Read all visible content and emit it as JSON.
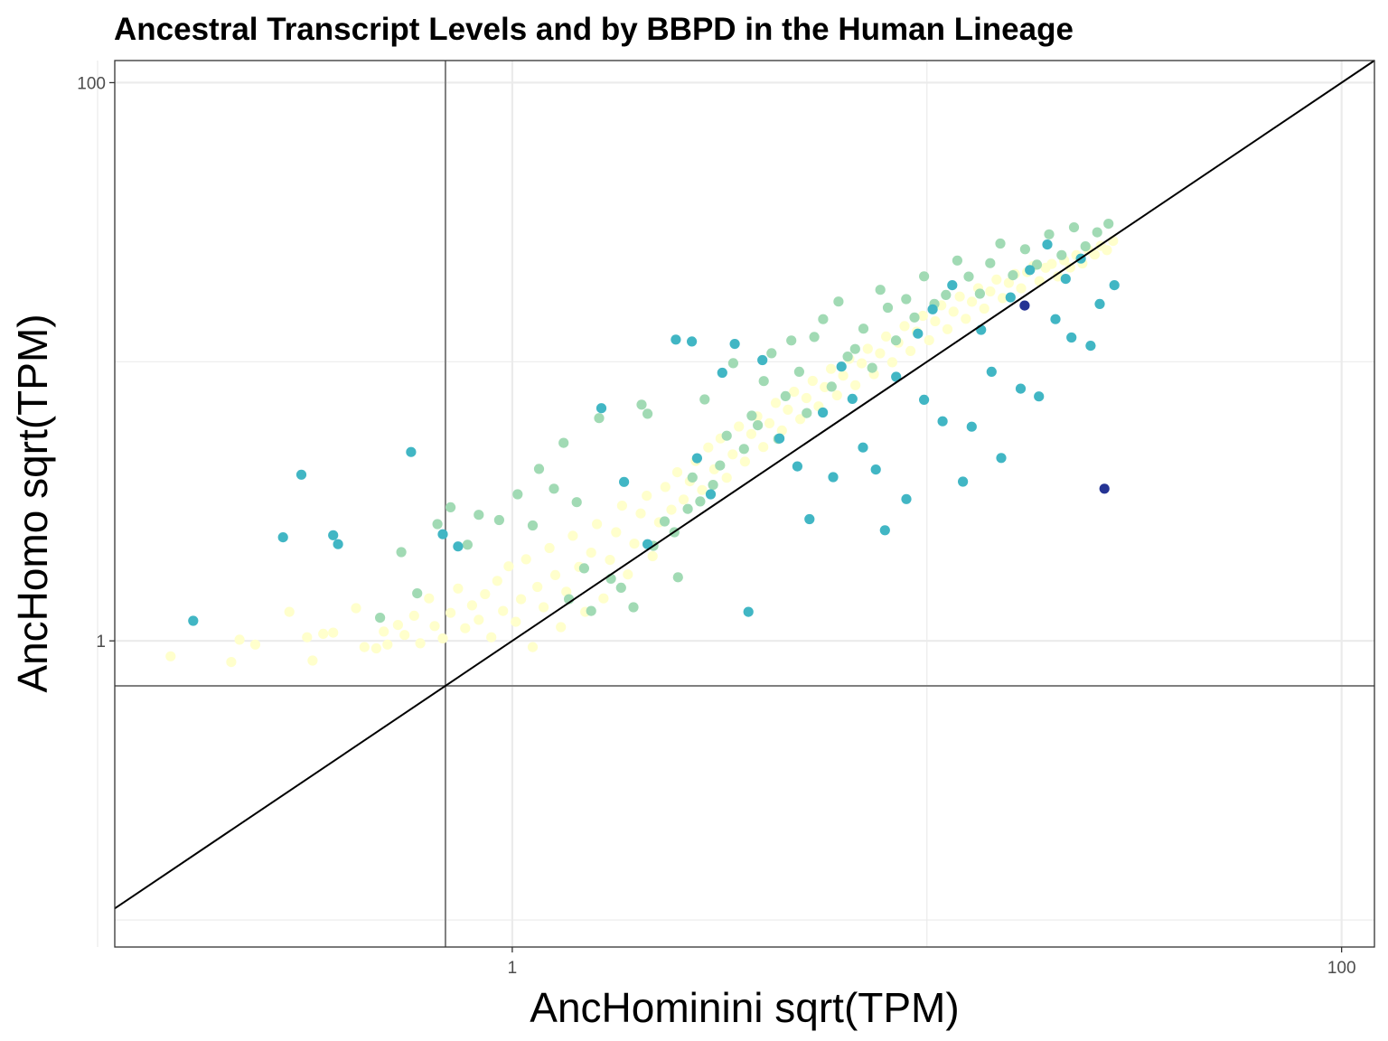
{
  "chart_data": {
    "type": "scatter",
    "title": "Ancestral Transcript Levels and by BBPD in the Human Lineage",
    "xlabel": "AncHominini sqrt(TPM)",
    "ylabel": "AncHomo sqrt(TPM)",
    "x_scale": "log10",
    "y_scale": "log10",
    "xlim": [
      0.11,
      120
    ],
    "ylim": [
      0.08,
      120
    ],
    "x_ticks": [
      {
        "value": 1,
        "label": "1"
      },
      {
        "value": 100,
        "label": "100"
      }
    ],
    "y_ticks": [
      {
        "value": 1,
        "label": "1"
      },
      {
        "value": 100,
        "label": "100"
      }
    ],
    "x_minor_gridlines": [
      0.1,
      10
    ],
    "y_minor_gridlines": [
      0.1,
      10
    ],
    "grid": true,
    "reference_lines": {
      "vertical_x": 0.69,
      "horizontal_y": 0.69,
      "identity_line": true
    },
    "colors": {
      "panel_border": "#333333",
      "grid": "#ebebeb",
      "reference_line": "#7f7f7f",
      "identity_line": "#000000"
    },
    "series": [
      {
        "color": "#ffffcc",
        "points": [
          [
            0.15,
            0.88
          ],
          [
            0.21,
            0.84
          ],
          [
            0.22,
            1.01
          ],
          [
            0.24,
            0.97
          ],
          [
            0.29,
            1.27
          ],
          [
            0.32,
            1.03
          ],
          [
            0.33,
            0.85
          ],
          [
            0.35,
            1.06
          ],
          [
            0.37,
            1.07
          ],
          [
            0.42,
            1.31
          ],
          [
            0.44,
            0.95
          ],
          [
            0.47,
            0.94
          ],
          [
            0.49,
            1.08
          ],
          [
            0.5,
            0.97
          ],
          [
            0.53,
            1.14
          ],
          [
            0.55,
            1.05
          ],
          [
            0.58,
            1.23
          ],
          [
            0.6,
            0.98
          ],
          [
            0.63,
            1.42
          ],
          [
            0.65,
            1.13
          ],
          [
            0.68,
            1.02
          ],
          [
            0.71,
            1.26
          ],
          [
            0.74,
            1.54
          ],
          [
            0.77,
            1.11
          ],
          [
            0.8,
            1.34
          ],
          [
            0.83,
            1.19
          ],
          [
            0.86,
            1.47
          ],
          [
            0.89,
            1.03
          ],
          [
            0.92,
            1.64
          ],
          [
            0.95,
            1.28
          ],
          [
            0.98,
            1.85
          ],
          [
            1.02,
            1.17
          ],
          [
            1.05,
            1.41
          ],
          [
            1.08,
            1.96
          ],
          [
            1.12,
            0.95
          ],
          [
            1.15,
            1.56
          ],
          [
            1.19,
            1.32
          ],
          [
            1.23,
            2.15
          ],
          [
            1.27,
            1.72
          ],
          [
            1.31,
            1.12
          ],
          [
            1.35,
            1.5
          ],
          [
            1.4,
            2.38
          ],
          [
            1.45,
            1.84
          ],
          [
            1.5,
            1.27
          ],
          [
            1.55,
            2.07
          ],
          [
            1.6,
            2.62
          ],
          [
            1.66,
            1.42
          ],
          [
            1.72,
            1.95
          ],
          [
            1.78,
            2.45
          ],
          [
            1.84,
            3.05
          ],
          [
            1.9,
            1.73
          ],
          [
            1.97,
            2.23
          ],
          [
            2.04,
            2.86
          ],
          [
            2.11,
            3.31
          ],
          [
            2.18,
            2.01
          ],
          [
            2.26,
            2.66
          ],
          [
            2.34,
            3.56
          ],
          [
            2.42,
            2.95
          ],
          [
            2.5,
            4.02
          ],
          [
            2.59,
            3.21
          ],
          [
            2.68,
            3.73
          ],
          [
            2.77,
            4.41
          ],
          [
            2.87,
            3.47
          ],
          [
            2.97,
            4.93
          ],
          [
            3.07,
            4.12
          ],
          [
            3.18,
            5.31
          ],
          [
            3.29,
            3.84
          ],
          [
            3.4,
            4.66
          ],
          [
            3.52,
            5.86
          ],
          [
            3.64,
            4.39
          ],
          [
            3.77,
            5.51
          ],
          [
            3.9,
            6.37
          ],
          [
            4.03,
            4.95
          ],
          [
            4.17,
            6.02
          ],
          [
            4.32,
            7.12
          ],
          [
            4.47,
            5.67
          ],
          [
            4.62,
            6.73
          ],
          [
            4.78,
            7.81
          ],
          [
            4.95,
            6.23
          ],
          [
            5.12,
            7.41
          ],
          [
            5.3,
            8.54
          ],
          [
            5.48,
            6.92
          ],
          [
            5.67,
            8.11
          ],
          [
            5.87,
            9.43
          ],
          [
            6.07,
            7.58
          ],
          [
            6.28,
            8.92
          ],
          [
            6.5,
            10.25
          ],
          [
            6.72,
            8.24
          ],
          [
            6.96,
            9.87
          ],
          [
            7.2,
            11.13
          ],
          [
            7.45,
            9.03
          ],
          [
            7.71,
            10.72
          ],
          [
            7.97,
            12.31
          ],
          [
            8.25,
            9.96
          ],
          [
            8.53,
            11.71
          ],
          [
            8.83,
            13.42
          ],
          [
            9.13,
            10.93
          ],
          [
            9.45,
            12.82
          ],
          [
            9.78,
            14.61
          ],
          [
            10.12,
            11.94
          ],
          [
            10.47,
            13.97
          ],
          [
            10.83,
            15.93
          ],
          [
            11.21,
            13.08
          ],
          [
            11.59,
            15.12
          ],
          [
            12.0,
            17.12
          ],
          [
            12.41,
            14.25
          ],
          [
            12.84,
            16.41
          ],
          [
            13.29,
            18.33
          ],
          [
            13.75,
            15.51
          ],
          [
            14.22,
            17.87
          ],
          [
            14.72,
            19.69
          ],
          [
            15.23,
            16.91
          ],
          [
            15.76,
            19.17
          ],
          [
            16.3,
            20.63
          ],
          [
            16.87,
            18.32
          ],
          [
            17.45,
            20.95
          ],
          [
            18.06,
            22.05
          ],
          [
            18.68,
            19.45
          ],
          [
            19.33,
            21.72
          ],
          [
            20.0,
            22.41
          ],
          [
            20.69,
            20.21
          ],
          [
            21.41,
            23.11
          ],
          [
            22.15,
            21.75
          ],
          [
            22.92,
            24.08
          ],
          [
            23.71,
            22.51
          ],
          [
            24.53,
            25.12
          ],
          [
            25.38,
            24.21
          ],
          [
            26.26,
            26.03
          ],
          [
            27.17,
            25.11
          ],
          [
            28.11,
            27.09
          ]
        ]
      },
      {
        "color": "#a1dab4",
        "points": [
          [
            0.48,
            1.21
          ],
          [
            0.54,
            2.08
          ],
          [
            0.59,
            1.48
          ],
          [
            0.66,
            2.62
          ],
          [
            0.71,
            3.01
          ],
          [
            0.78,
            2.21
          ],
          [
            0.83,
            2.83
          ],
          [
            0.93,
            2.71
          ],
          [
            1.03,
            3.35
          ],
          [
            1.12,
            2.59
          ],
          [
            1.16,
            4.13
          ],
          [
            1.26,
            3.51
          ],
          [
            1.33,
            5.12
          ],
          [
            1.37,
            1.41
          ],
          [
            1.43,
            3.14
          ],
          [
            1.49,
            1.82
          ],
          [
            1.55,
            1.28
          ],
          [
            1.62,
            6.28
          ],
          [
            1.73,
            1.67
          ],
          [
            1.83,
            1.55
          ],
          [
            1.96,
            1.32
          ],
          [
            2.05,
            7.02
          ],
          [
            2.12,
            6.51
          ],
          [
            2.19,
            2.19
          ],
          [
            2.33,
            2.68
          ],
          [
            2.46,
            2.45
          ],
          [
            2.51,
            1.69
          ],
          [
            2.65,
            2.97
          ],
          [
            2.72,
            3.85
          ],
          [
            2.84,
            3.16
          ],
          [
            2.91,
            7.33
          ],
          [
            3.05,
            3.62
          ],
          [
            3.17,
            4.25
          ],
          [
            3.29,
            5.43
          ],
          [
            3.41,
            9.88
          ],
          [
            3.62,
            4.87
          ],
          [
            3.78,
            6.41
          ],
          [
            3.91,
            5.92
          ],
          [
            4.04,
            8.53
          ],
          [
            4.22,
            10.73
          ],
          [
            4.38,
            5.29
          ],
          [
            4.56,
            7.53
          ],
          [
            4.71,
            11.92
          ],
          [
            4.92,
            9.21
          ],
          [
            5.13,
            6.55
          ],
          [
            5.35,
            12.27
          ],
          [
            5.62,
            14.21
          ],
          [
            5.89,
            8.14
          ],
          [
            6.12,
            16.43
          ],
          [
            6.44,
            10.44
          ],
          [
            6.71,
            11.11
          ],
          [
            7.03,
            13.14
          ],
          [
            7.38,
            9.51
          ],
          [
            7.72,
            18.11
          ],
          [
            8.05,
            15.62
          ],
          [
            8.42,
            11.93
          ],
          [
            8.91,
            16.77
          ],
          [
            9.33,
            14.41
          ],
          [
            9.84,
            20.23
          ],
          [
            10.42,
            16.12
          ],
          [
            11.11,
            17.35
          ],
          [
            11.84,
            23.05
          ],
          [
            12.61,
            20.18
          ],
          [
            13.42,
            17.53
          ],
          [
            14.21,
            22.56
          ],
          [
            15.03,
            26.51
          ],
          [
            16.12,
            20.41
          ],
          [
            17.25,
            25.31
          ],
          [
            18.42,
            22.28
          ],
          [
            19.71,
            28.62
          ],
          [
            21.12,
            24.11
          ],
          [
            22.63,
            30.31
          ],
          [
            24.12,
            25.91
          ],
          [
            25.74,
            29.08
          ],
          [
            27.41,
            31.22
          ]
        ]
      },
      {
        "color": "#41b6c4",
        "points": [
          [
            0.17,
            1.18
          ],
          [
            0.28,
            2.35
          ],
          [
            0.31,
            3.94
          ],
          [
            0.37,
            2.39
          ],
          [
            0.38,
            2.22
          ],
          [
            0.57,
            4.75
          ],
          [
            0.68,
            2.41
          ],
          [
            0.74,
            2.18
          ],
          [
            1.64,
            6.82
          ],
          [
            1.86,
            3.71
          ],
          [
            2.12,
            2.22
          ],
          [
            2.48,
            12.01
          ],
          [
            2.71,
            11.82
          ],
          [
            2.79,
            4.51
          ],
          [
            3.01,
            3.35
          ],
          [
            3.21,
            9.13
          ],
          [
            3.44,
            11.58
          ],
          [
            3.71,
            1.27
          ],
          [
            4.01,
            10.14
          ],
          [
            4.41,
            5.31
          ],
          [
            4.87,
            4.22
          ],
          [
            5.21,
            2.73
          ],
          [
            5.61,
            6.58
          ],
          [
            5.94,
            3.86
          ],
          [
            6.22,
            9.61
          ],
          [
            6.61,
            7.36
          ],
          [
            7.01,
            4.93
          ],
          [
            7.53,
            4.11
          ],
          [
            7.92,
            2.49
          ],
          [
            8.43,
            8.83
          ],
          [
            8.92,
            3.22
          ],
          [
            9.51,
            12.61
          ],
          [
            9.84,
            7.31
          ],
          [
            10.32,
            15.41
          ],
          [
            10.91,
            6.12
          ],
          [
            11.51,
            18.81
          ],
          [
            12.21,
            3.72
          ],
          [
            12.82,
            5.85
          ],
          [
            13.51,
            13.01
          ],
          [
            14.32,
            9.21
          ],
          [
            15.11,
            4.52
          ],
          [
            15.91,
            17.01
          ],
          [
            16.83,
            8.01
          ],
          [
            17.71,
            21.31
          ],
          [
            18.62,
            7.51
          ],
          [
            19.51,
            26.31
          ],
          [
            20.41,
            14.21
          ],
          [
            21.61,
            19.81
          ],
          [
            22.31,
            12.21
          ],
          [
            23.51,
            23.41
          ],
          [
            24.81,
            11.41
          ],
          [
            26.11,
            16.11
          ],
          [
            28.31,
            18.81
          ]
        ]
      },
      {
        "color": "#253494",
        "points": [
          [
            17.2,
            15.9
          ],
          [
            26.8,
            3.51
          ]
        ]
      }
    ]
  }
}
